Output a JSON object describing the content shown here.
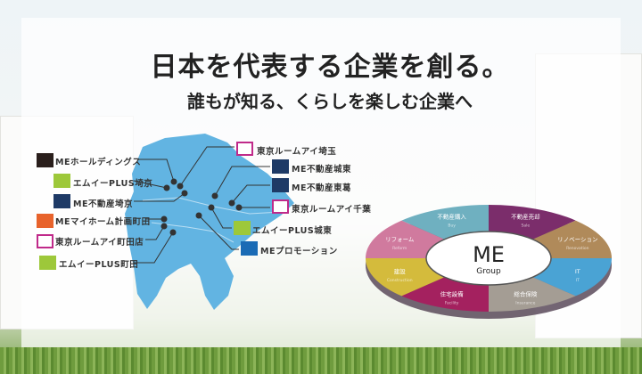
{
  "headline": "日本を代表する企業を創る。",
  "subheadline": "誰もが知る、くらしを楽しむ企業へ",
  "companies": [
    {
      "name": "MEホールディングス",
      "color": "#2a1f1c"
    },
    {
      "name": "エムイーPLUS埼京",
      "color": "#9dc83a"
    },
    {
      "name": "ME不動産埼京",
      "color": "#1e3a66"
    },
    {
      "name": "MEマイホーム計画町田",
      "color": "#e8632c"
    },
    {
      "name": "東京ルームアイ町田店",
      "color": "#c02a8a"
    },
    {
      "name": "エムイーPLUS町田",
      "color": "#9dc83a"
    },
    {
      "name": "東京ルームアイ埼玉",
      "color": "#c02a8a"
    },
    {
      "name": "ME不動産城東",
      "color": "#1e3a66"
    },
    {
      "name": "ME不動産東葛",
      "color": "#1e3a66"
    },
    {
      "name": "東京ルームアイ千葉",
      "color": "#c02a8a"
    },
    {
      "name": "エムイーPLUS城東",
      "color": "#9dc83a"
    },
    {
      "name": "MEプロモーション",
      "color": "#1a6bb5"
    }
  ],
  "group": {
    "logo": "ME",
    "sub": "Group",
    "segments": [
      {
        "label": "不動産売却",
        "en": "Sale",
        "color": "#7b2d6b"
      },
      {
        "label": "リノベーション",
        "en": "Renovation",
        "color": "#b08a5a"
      },
      {
        "label": "IT",
        "en": "IT",
        "color": "#4aa3d4"
      },
      {
        "label": "総合保険",
        "en": "Insurance",
        "color": "#a49d94"
      },
      {
        "label": "住宅設備",
        "en": "Facility",
        "color": "#a4215f"
      },
      {
        "label": "建設",
        "en": "Construction",
        "color": "#d4bb3c"
      },
      {
        "label": "リフォーム",
        "en": "Reform",
        "color": "#d07a9e"
      },
      {
        "label": "不動産購入",
        "en": "Buy",
        "color": "#6fb0c0"
      }
    ]
  }
}
